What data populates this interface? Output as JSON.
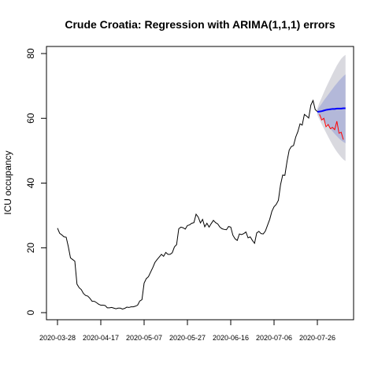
{
  "chart_data": {
    "type": "line",
    "title": "Crude Croatia: Regression with ARIMA(1,1,1) errors",
    "xlabel": "",
    "ylabel": "ICU occupancy",
    "ylim": [
      0,
      80
    ],
    "yticks": [
      0,
      20,
      40,
      60,
      80
    ],
    "xlim_days": [
      -5,
      136
    ],
    "xticks": [
      "2020-03-28",
      "2020-04-17",
      "2020-05-07",
      "2020-05-27",
      "2020-06-16",
      "2020-07-06",
      "2020-07-26"
    ],
    "grid": false,
    "legend": "none",
    "colors": {
      "observed": "#000000",
      "test": "#ff0000",
      "forecast_mean": "#0000ff",
      "pi80": "#b3b8d9",
      "pi95": "#d9d9df"
    },
    "observed": {
      "start_date": "2020-03-28",
      "y": [
        26.1,
        24.5,
        24.0,
        23.4,
        23.3,
        20.4,
        16.9,
        16.4,
        15.9,
        8.8,
        7.7,
        7.1,
        5.9,
        5.3,
        5.1,
        4.4,
        3.5,
        3.5,
        3.1,
        2.6,
        2.3,
        2.3,
        2.2,
        1.5,
        1.5,
        1.6,
        1.4,
        1.2,
        1.4,
        1.4,
        1.1,
        1.3,
        1.7,
        1.6,
        1.8,
        1.8,
        2.0,
        2.3,
        3.6,
        4.0,
        9.1,
        10.5,
        11.1,
        12.5,
        13.9,
        15.5,
        16.4,
        17.2,
        18.0,
        17.4,
        18.6,
        18.0,
        18.0,
        18.5,
        20.3,
        21.0,
        25.9,
        26.4,
        26.2,
        25.8,
        26.9,
        27.1,
        27.6,
        27.8,
        30.4,
        29.5,
        27.7,
        28.8,
        26.5,
        27.6,
        26.4,
        27.5,
        28.5,
        27.8,
        27.4,
        26.4,
        25.9,
        25.7,
        25.6,
        26.6,
        26.4,
        23.9,
        22.8,
        22.3,
        24.3,
        24.1,
        24.4,
        24.9,
        23.1,
        23.4,
        22.3,
        21.4,
        24.6,
        25.1,
        24.4,
        24.3,
        25.2,
        27.0,
        28.8,
        31.3,
        32.7,
        33.4,
        34.7,
        39.5,
        42.5,
        42.4,
        46.7,
        50.2,
        51.3,
        51.6,
        54.2,
        55.9,
        58.3,
        57.9,
        61.2,
        60.7,
        60.1,
        64.1,
        65.5,
        62.7,
        62.1,
        62.1
      ]
    },
    "test": {
      "start_date": "2020-07-27",
      "y": [
        61.2,
        59.5,
        60.0,
        57.4,
        58.1,
        56.8,
        57.2,
        56.5,
        59.1,
        55.4,
        55.7,
        53.4
      ]
    },
    "forecast": {
      "start_date": "2020-07-26",
      "mean": [
        62.0,
        62.1,
        62.2,
        62.4,
        62.6,
        62.7,
        62.8,
        62.9,
        62.9,
        63.0,
        63.0,
        63.0,
        63.1,
        63.1
      ],
      "lo80": [
        61.5,
        60.8,
        60.0,
        59.2,
        58.4,
        57.6,
        56.8,
        56.0,
        55.2,
        54.5,
        53.8,
        53.2,
        52.7,
        52.3
      ],
      "hi80": [
        62.6,
        63.6,
        64.5,
        65.5,
        66.4,
        67.3,
        68.2,
        69.1,
        70.0,
        70.8,
        71.6,
        72.3,
        73.0,
        73.6
      ],
      "lo95": [
        61.0,
        59.6,
        58.2,
        56.9,
        55.6,
        54.3,
        53.0,
        51.8,
        50.7,
        49.7,
        48.8,
        48.0,
        47.3,
        46.8
      ],
      "hi95": [
        63.1,
        64.9,
        66.4,
        68.0,
        69.5,
        70.9,
        72.3,
        73.7,
        75.0,
        76.3,
        77.4,
        78.4,
        79.1,
        79.6
      ]
    }
  }
}
